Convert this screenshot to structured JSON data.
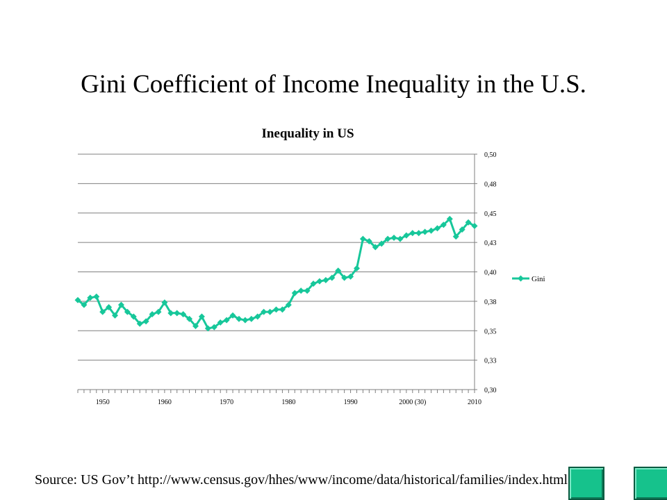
{
  "slide": {
    "title": "Gini Coefficient of Income Inequality in the U.S.",
    "source": "Source: US Gov’t http://www.census.gov/hhes/www/income/data/historical/families/index.html"
  },
  "colors": {
    "series": "#17c79a",
    "grid": "#7f7f7f",
    "nav_button": "#16c28c"
  },
  "nav": {
    "prev_icon": "previous-slide-icon",
    "next_icon": "next-slide-icon"
  },
  "chart_data": {
    "type": "line",
    "title": "Inequality in US",
    "xlabel": "",
    "ylabel": "",
    "grid": true,
    "legend_position": "right",
    "y_axis_position": "right",
    "ylim": [
      0.3,
      0.5
    ],
    "yticks": [
      0.3,
      0.325,
      0.35,
      0.375,
      0.4,
      0.425,
      0.45,
      0.475,
      0.5
    ],
    "ytick_labels": [
      "0,30",
      "0,33",
      "0,35",
      "0,38",
      "0,40",
      "0,43",
      "0,45",
      "0,48",
      "0,50"
    ],
    "x_axis_kind": "category",
    "xtick_labels": [
      {
        "index": 4,
        "label": "1950"
      },
      {
        "index": 14,
        "label": "1960"
      },
      {
        "index": 24,
        "label": "1970"
      },
      {
        "index": 34,
        "label": "1980"
      },
      {
        "index": 44,
        "label": "1990"
      },
      {
        "index": 54,
        "label": "2000 (30)"
      },
      {
        "index": 64,
        "label": "2010"
      }
    ],
    "series": [
      {
        "name": "Gini",
        "values": [
          0.376,
          0.372,
          0.378,
          0.379,
          0.366,
          0.37,
          0.363,
          0.372,
          0.366,
          0.362,
          0.356,
          0.358,
          0.364,
          0.366,
          0.374,
          0.365,
          0.365,
          0.364,
          0.36,
          0.354,
          0.362,
          0.352,
          0.353,
          0.357,
          0.359,
          0.363,
          0.36,
          0.359,
          0.36,
          0.362,
          0.366,
          0.366,
          0.368,
          0.368,
          0.372,
          0.382,
          0.384,
          0.384,
          0.39,
          0.392,
          0.393,
          0.395,
          0.401,
          0.395,
          0.396,
          0.403,
          0.428,
          0.426,
          0.421,
          0.424,
          0.428,
          0.429,
          0.428,
          0.431,
          0.433,
          0.433,
          0.434,
          0.435,
          0.437,
          0.44,
          0.445,
          0.43,
          0.436,
          0.442,
          0.439
        ]
      }
    ]
  }
}
